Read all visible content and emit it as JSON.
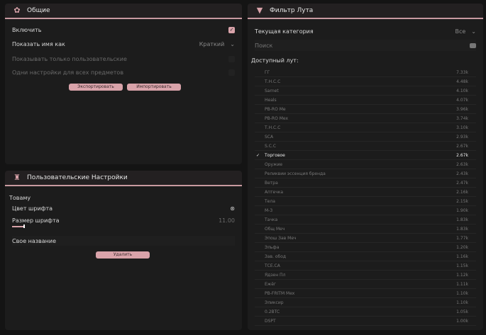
{
  "general": {
    "title": "Общие",
    "icon": "gear-icon",
    "enable_label": "Включить",
    "enable_checked": true,
    "show_names_label": "Показать имя как",
    "show_names_value": "Краткий",
    "only_custom_label": "Показывать только пользовательские",
    "only_custom_checked": false,
    "same_settings_label": "Одни настройки для всех предметов",
    "same_settings_checked": false,
    "export_label": "Экспортировать",
    "import_label": "Импортировать"
  },
  "custom": {
    "title": "Пользовательские Настройки",
    "group": "Товаму",
    "font_color_label": "Цвет шрифта",
    "font_size_label": "Размер шрифта",
    "font_size_value": "11.00",
    "font_size_fraction": 0.05,
    "custom_name_label": "Свое название",
    "delete_label": "Удалить"
  },
  "filter": {
    "title": "Фильтр Лута",
    "category_label": "Текущая категория",
    "category_value": "Все",
    "search_placeholder": "Поиск",
    "available_label": "Доступный лут:",
    "items": [
      {
        "name": "ГГ",
        "value": "7.33k"
      },
      {
        "name": "Т.Н.С.С",
        "value": "4.48k"
      },
      {
        "name": "Sarnet",
        "value": "4.10k"
      },
      {
        "name": "Heals",
        "value": "4.07k"
      },
      {
        "name": "PB-RO Me",
        "value": "3.96k"
      },
      {
        "name": "PB-RO Mex",
        "value": "3.74k"
      },
      {
        "name": "Т.Н.С.С",
        "value": "3.10k"
      },
      {
        "name": "SCA",
        "value": "2.93k"
      },
      {
        "name": "S.C.C",
        "value": "2.67k"
      },
      {
        "name": "Торговое",
        "value": "2.67k",
        "checked": true
      },
      {
        "name": "Оружие",
        "value": "2.63k"
      },
      {
        "name": "Реликвии эссенция бренда",
        "value": "2.43k"
      },
      {
        "name": "Ветра",
        "value": "2.47k"
      },
      {
        "name": "Аптечка",
        "value": "2.16k"
      },
      {
        "name": "Тела",
        "value": "2.15k"
      },
      {
        "name": "M-3",
        "value": "1.90k"
      },
      {
        "name": "Тачка",
        "value": "1.83k"
      },
      {
        "name": "Общ Меч",
        "value": "1.83k"
      },
      {
        "name": "Эпош Зав Меч",
        "value": "1.77k"
      },
      {
        "name": "Эльфа",
        "value": "1.20k"
      },
      {
        "name": "Зав. обод",
        "value": "1.16k"
      },
      {
        "name": "ТСЕ.СА",
        "value": "1.15k"
      },
      {
        "name": "Ядзен Пл",
        "value": "1.12k"
      },
      {
        "name": "Ежёг",
        "value": "1.11k"
      },
      {
        "name": "PB-FRITM Mex",
        "value": "1.10k"
      },
      {
        "name": "Эликсир",
        "value": "1.10k"
      },
      {
        "name": "0.2BTC",
        "value": "1.05k"
      },
      {
        "name": "DSPT",
        "value": "1.00k"
      }
    ]
  }
}
